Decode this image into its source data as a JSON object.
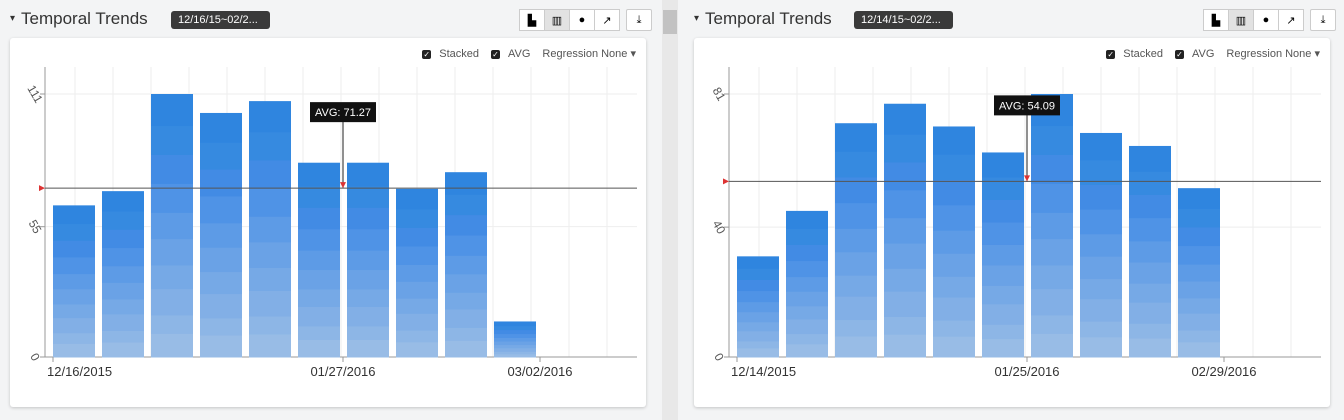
{
  "controls": {
    "stacked": "Stacked",
    "avg": "AVG",
    "regression": "Regression None ▾",
    "caret": "▾"
  },
  "icons": [
    "area-chart-icon",
    "bar-chart-icon",
    "dot-chart-icon",
    "line-chart-icon",
    "download-icon"
  ],
  "panels": [
    {
      "title": "Temporal Trends",
      "range": "12/16/15~02/2...",
      "chart_data": {
        "type": "bar",
        "stacked": true,
        "ylim": [
          0,
          111
        ],
        "yticks": [
          0,
          55,
          111
        ],
        "xticks": [
          {
            "label": "12/16/2015",
            "index": 0
          },
          {
            "label": "01/27/2016",
            "index": 6
          },
          {
            "label": "03/02/2016",
            "index": 11
          }
        ],
        "values": [
          64,
          70,
          111,
          103,
          108,
          82,
          82,
          71,
          78,
          15
        ],
        "avg": 71.27,
        "avg_label": "AVG: 71.27",
        "avg_index": 6
      }
    },
    {
      "title": "Temporal Trends",
      "range": "12/14/15~02/2...",
      "chart_data": {
        "type": "bar",
        "stacked": true,
        "ylim": [
          0,
          81
        ],
        "yticks": [
          0,
          40,
          81
        ],
        "xticks": [
          {
            "label": "12/14/2015",
            "index": 0
          },
          {
            "label": "01/25/2016",
            "index": 6
          },
          {
            "label": "02/29/2016",
            "index": 11
          }
        ],
        "values": [
          31,
          45,
          72,
          78,
          71,
          63,
          81,
          69,
          65,
          52
        ],
        "avg": 54.09,
        "avg_label": "AVG: 54.09",
        "avg_index": 6
      }
    }
  ]
}
